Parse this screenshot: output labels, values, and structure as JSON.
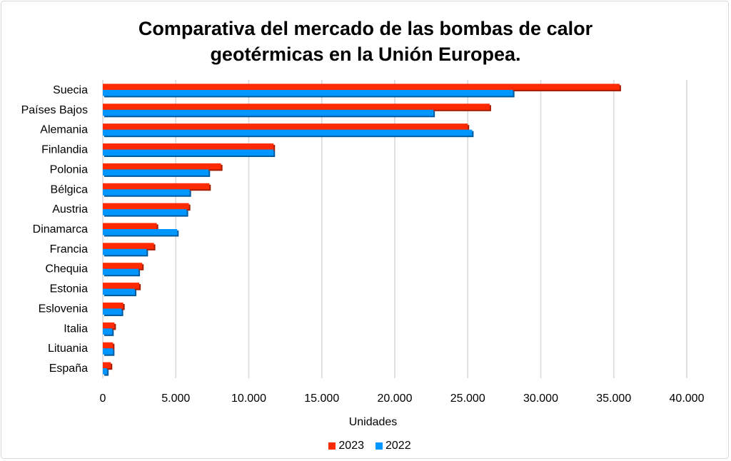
{
  "chart_data": {
    "type": "bar",
    "orientation": "horizontal",
    "title": [
      "Comparativa del mercado de las bombas de calor",
      "geotérmicas en la Unión Europea."
    ],
    "xlabel": "Unidades",
    "ylabel": "",
    "xlim": [
      0,
      40000
    ],
    "xticks": [
      0,
      5000,
      10000,
      15000,
      20000,
      25000,
      30000,
      35000,
      40000
    ],
    "xtick_labels": [
      "0",
      "5.000",
      "10.000",
      "15.000",
      "20.000",
      "25.000",
      "30.000",
      "35.000",
      "40.000"
    ],
    "grid": "vertical",
    "legend_position": "bottom",
    "categories": [
      "España",
      "Lituania",
      "Italia",
      "Eslovenia",
      "Estonia",
      "Chequia",
      "Francia",
      "Dinamarca",
      "Austria",
      "Bélgica",
      "Polonia",
      "Finlandia",
      "Alemania",
      "Países Bajos",
      "Suecia"
    ],
    "series": [
      {
        "name": "2023",
        "color": "#ff2a00",
        "values": [
          550,
          700,
          800,
          1400,
          2500,
          2700,
          3500,
          3700,
          5900,
          7300,
          8100,
          11700,
          25000,
          26500,
          35400
        ]
      },
      {
        "name": "2022",
        "color": "#0096ff",
        "values": [
          300,
          700,
          650,
          1300,
          2200,
          2450,
          3000,
          5100,
          5750,
          5950,
          7250,
          11700,
          25300,
          22650,
          28100
        ]
      }
    ]
  }
}
